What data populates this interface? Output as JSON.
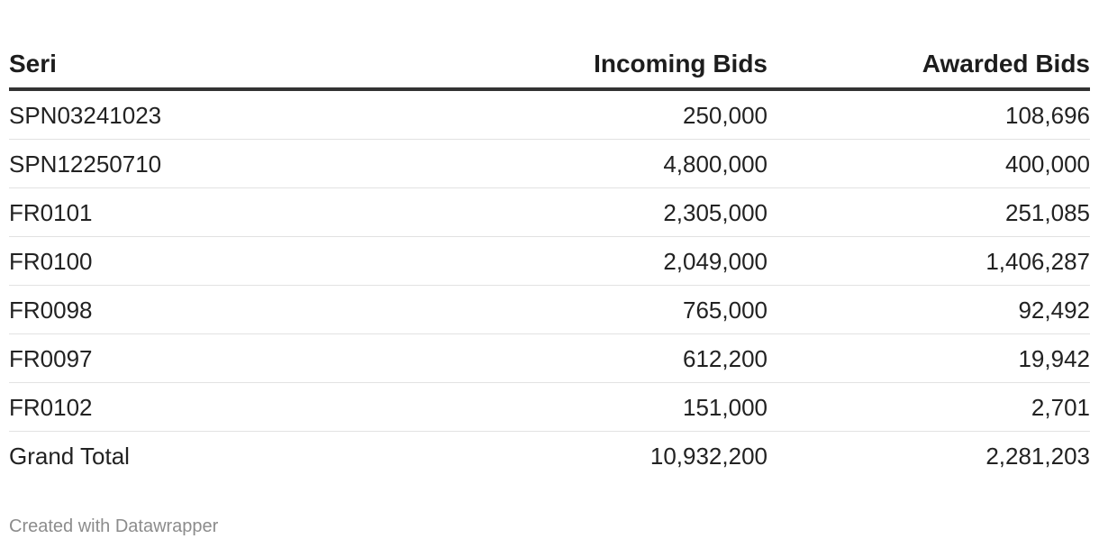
{
  "chart_data": {
    "type": "table",
    "columns": [
      "Seri",
      "Incoming Bids",
      "Awarded Bids"
    ],
    "rows": [
      {
        "seri": "SPN03241023",
        "incoming": "250,000",
        "awarded": "108,696"
      },
      {
        "seri": "SPN12250710",
        "incoming": "4,800,000",
        "awarded": "400,000"
      },
      {
        "seri": "FR0101",
        "incoming": "2,305,000",
        "awarded": "251,085"
      },
      {
        "seri": "FR0100",
        "incoming": "2,049,000",
        "awarded": "1,406,287"
      },
      {
        "seri": "FR0098",
        "incoming": "765,000",
        "awarded": "92,492"
      },
      {
        "seri": "FR0097",
        "incoming": "612,200",
        "awarded": "19,942"
      },
      {
        "seri": "FR0102",
        "incoming": "151,000",
        "awarded": "2,701"
      },
      {
        "seri": "Grand Total",
        "incoming": "10,932,200",
        "awarded": "2,281,203"
      }
    ]
  },
  "footer": {
    "credit": "Created with Datawrapper"
  }
}
